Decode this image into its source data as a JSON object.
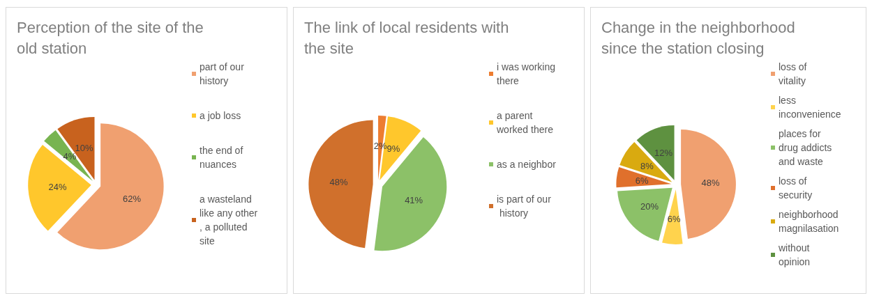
{
  "chart_data": [
    {
      "type": "pie",
      "title": "Perception of the site of the old station",
      "categories": [
        "part of our history",
        "a job loss",
        "the end of nuances",
        "a wasteland like any other, a polluted site"
      ],
      "values": [
        62,
        24,
        4,
        10
      ],
      "value_labels": [
        "62%",
        "24%",
        "4%",
        "10%"
      ],
      "colors": [
        "#f0a070",
        "#ffc72c",
        "#78b450",
        "#c8621e"
      ],
      "legend": "right"
    },
    {
      "type": "pie",
      "title": "The link of local residents with the site",
      "categories": [
        "i was working there",
        "a parent worked there",
        "as a neighbor",
        "is part of our history"
      ],
      "values": [
        2,
        9,
        41,
        48
      ],
      "value_labels": [
        "2%",
        "9%",
        "41%",
        "48%"
      ],
      "colors": [
        "#ed7d31",
        "#ffc72c",
        "#8cc168",
        "#d0702c"
      ],
      "legend": "right"
    },
    {
      "type": "pie",
      "title": "Change in the neighborhood since the station closing",
      "categories": [
        "loss of vitality",
        "less inconvenience",
        "places for drug addicts and waste",
        "loss of security",
        "neighborhood magnilasation",
        "without opinion"
      ],
      "values": [
        48,
        6,
        20,
        6,
        8,
        12
      ],
      "value_labels": [
        "48%",
        "6%",
        "20%",
        "6%",
        "8%",
        "12%"
      ],
      "colors": [
        "#f0a070",
        "#ffd34d",
        "#8cc168",
        "#e0702c",
        "#d9aa10",
        "#5e9140"
      ],
      "legend": "right"
    }
  ]
}
